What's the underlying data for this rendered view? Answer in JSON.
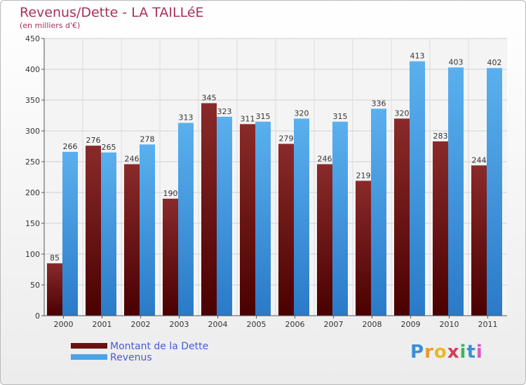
{
  "title": "Revenus/Dette - LA TAILLéE",
  "subtitle": "(en milliers d'€)",
  "logo_text": "Proxiti",
  "chart_data": {
    "type": "bar",
    "title": "Revenus/Dette - LA TAILLéE",
    "subtitle": "(en milliers d'€)",
    "categories": [
      "2000",
      "2001",
      "2002",
      "2003",
      "2004",
      "2005",
      "2006",
      "2007",
      "2008",
      "2009",
      "2010",
      "2011"
    ],
    "series": [
      {
        "name": "Montant de la Dette",
        "color": "#6b1010",
        "values": [
          85,
          276,
          246,
          190,
          345,
          311,
          279,
          246,
          219,
          320,
          283,
          244
        ]
      },
      {
        "name": "Revenus",
        "color": "#4aa3e8",
        "values": [
          266,
          265,
          278,
          313,
          323,
          315,
          320,
          315,
          336,
          413,
          403,
          402
        ]
      }
    ],
    "ylim": [
      0,
      450
    ],
    "yticks": [
      0,
      50,
      100,
      150,
      200,
      250,
      300,
      350,
      400,
      450
    ],
    "grid": true,
    "legend": "bottom-left"
  }
}
